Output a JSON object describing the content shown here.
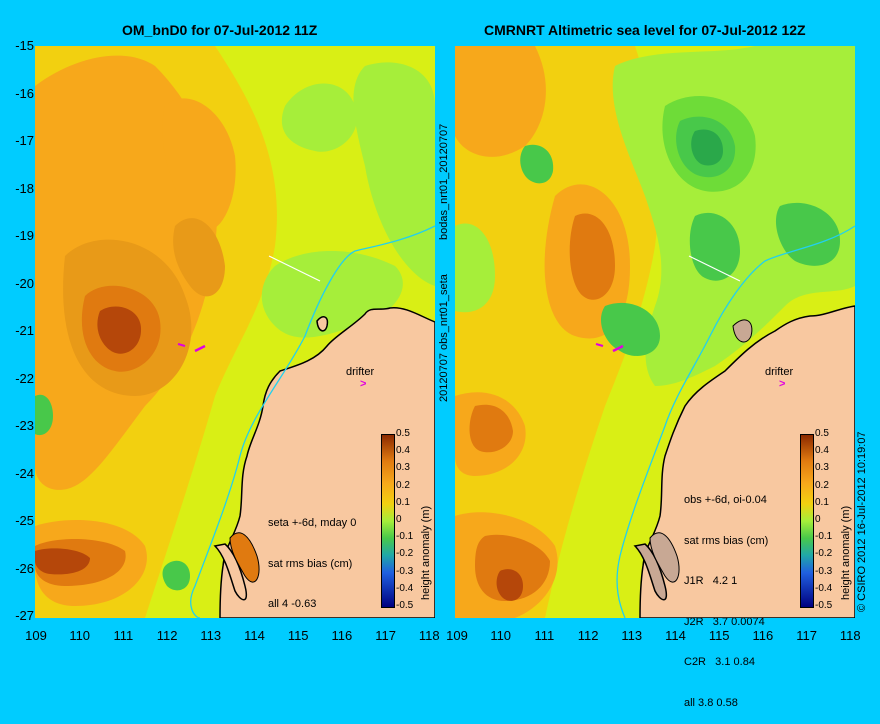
{
  "left_panel": {
    "title": "OM_bnD0 for 07-Jul-2012 11Z",
    "stats": [
      "seta +-6d, mday 0",
      "sat rms bias (cm)",
      "all 4 -0.63"
    ],
    "drifter_label": "drifter"
  },
  "right_panel": {
    "title": "CMRNRT Altimetric sea level  for 07-Jul-2012 12Z",
    "stats": [
      "obs +-6d, oi-0.04",
      "sat rms bias (cm)",
      "J1R   4.2 1",
      "J2R   3.7 0.0074",
      "C2R   3.1 0.84",
      "all 3.8 0.58"
    ],
    "drifter_label": "drifter"
  },
  "middle_label_top": "bodas_nrt01_20120707",
  "middle_label_bottom": "20120707 obs_nrt01_seta",
  "copyright": "© CSIRO 2012   16-Jul-2012 10:19:07",
  "colorbar": {
    "label": "height anomaly (m)",
    "ticks": [
      "0.5",
      "0.4",
      "0.3",
      "0.2",
      "0.1",
      "0",
      "-0.1",
      "-0.2",
      "-0.3",
      "-0.4",
      "-0.5"
    ]
  },
  "chart_data": {
    "type": "heatmap",
    "y_ticks": [
      "-15",
      "-16",
      "-17",
      "-18",
      "-19",
      "-20",
      "-21",
      "-22",
      "-23",
      "-24",
      "-25",
      "-26",
      "-27"
    ],
    "x_ticks_left": [
      "109",
      "110",
      "111",
      "112",
      "113",
      "114",
      "115",
      "116",
      "117",
      "118"
    ],
    "x_ticks_right": [
      "109",
      "110",
      "111",
      "112",
      "113",
      "114",
      "115",
      "116",
      "117",
      "118"
    ],
    "xlim": [
      109,
      118
    ],
    "ylim": [
      -27,
      -15
    ]
  },
  "colors": {
    "background": "#00ccff",
    "land": "#f8c8a0",
    "coastline": "#000000",
    "drifter_arrow": "#e000e0",
    "anomaly_0.5": "#8b2a00",
    "anomaly_0.3": "#e07a10",
    "anomaly_0.2": "#f7a81b",
    "anomaly_0.1": "#f2d010",
    "anomaly_0.05": "#d9ef15",
    "anomaly_0": "#a6ee3a",
    "anomaly_-0.05": "#6edc38",
    "anomaly_-0.1": "#48c84a"
  }
}
